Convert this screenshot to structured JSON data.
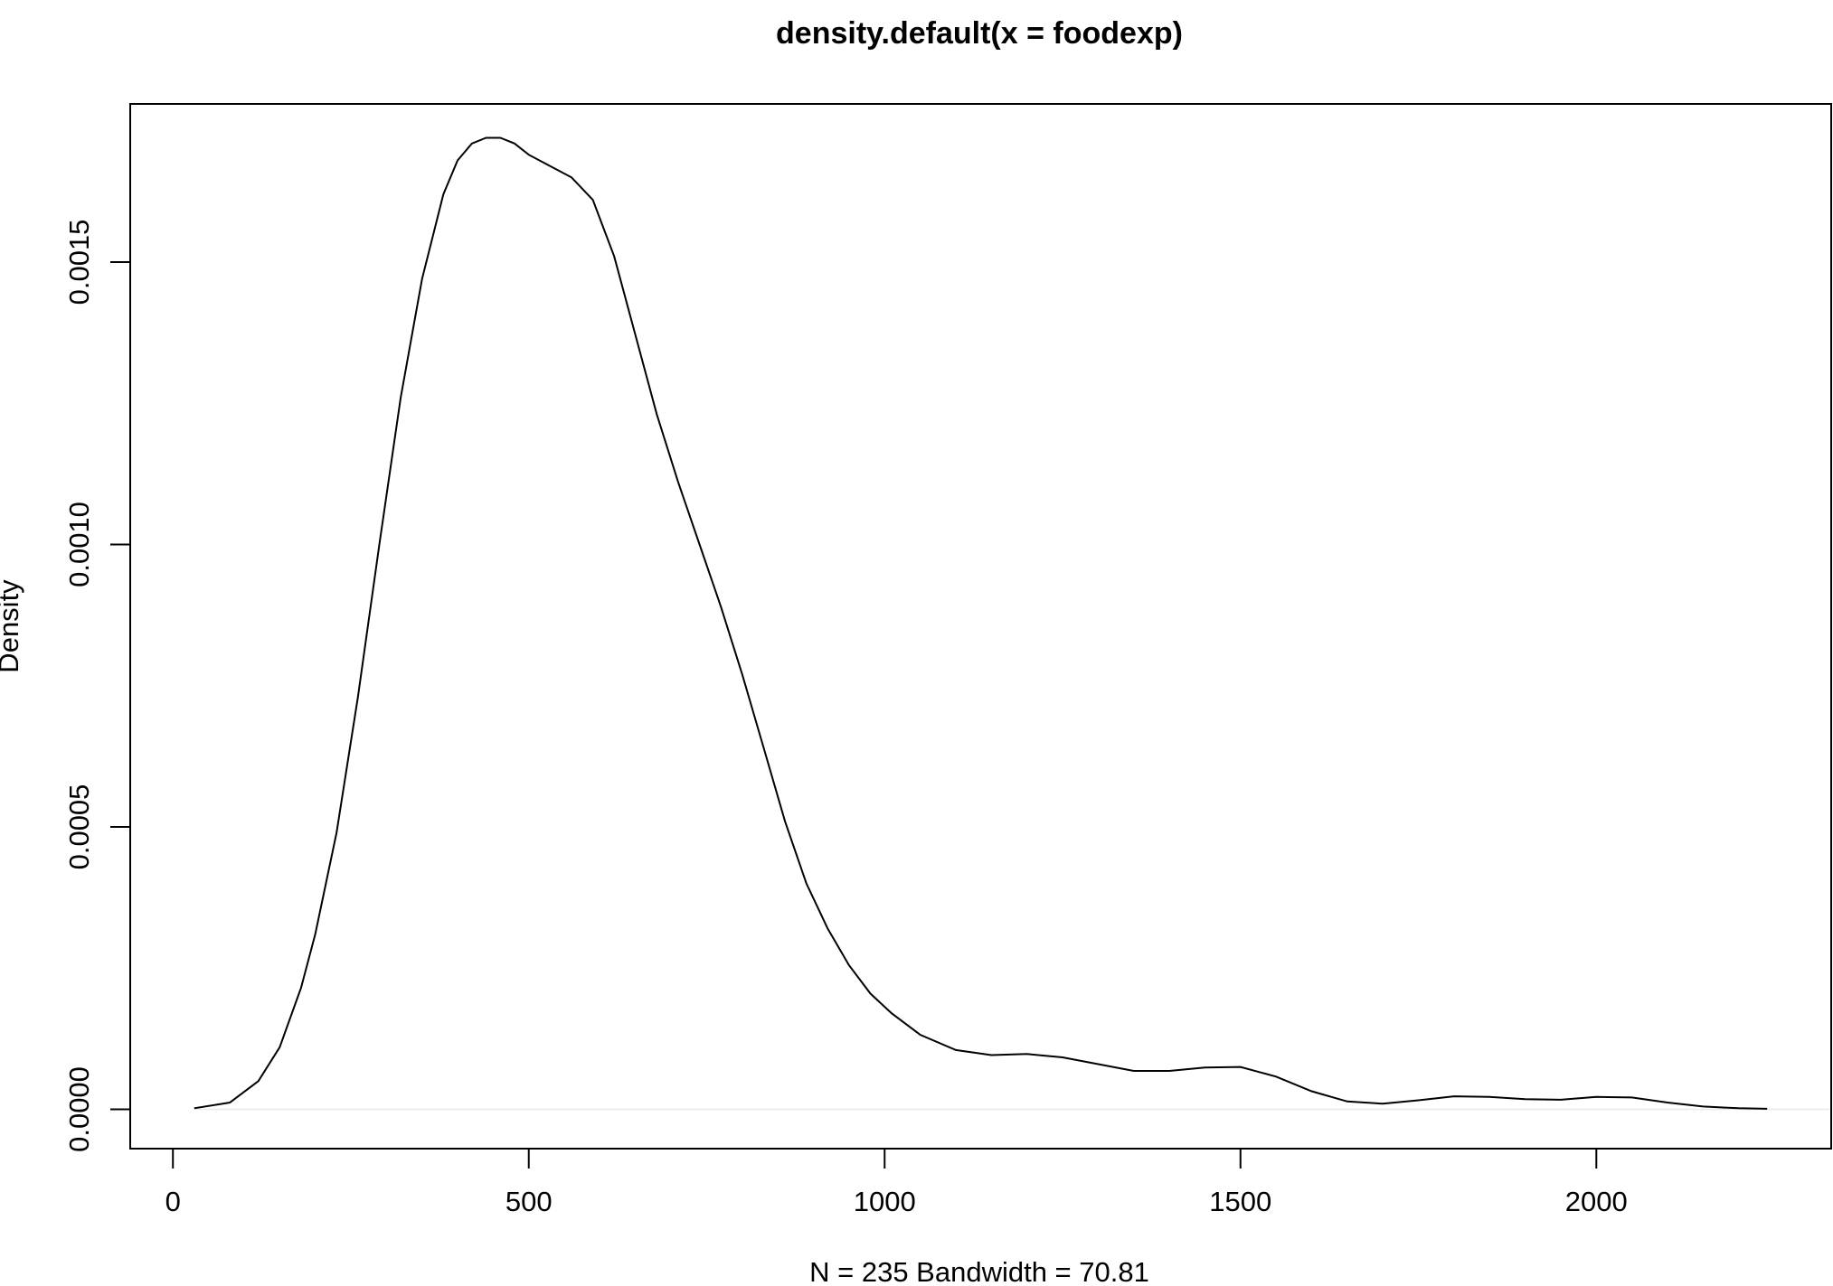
{
  "chart_data": {
    "type": "line",
    "title": "density.default(x = foodexp)",
    "xlabel": "N = 235   Bandwidth = 70.81",
    "ylabel": "Density",
    "xlim": [
      -60,
      2330
    ],
    "ylim": [
      -6.96e-05,
      0.00178
    ],
    "x_ticks": [
      0,
      500,
      1000,
      1500,
      2000
    ],
    "x_tick_labels": [
      "0",
      "500",
      "1000",
      "1500",
      "2000"
    ],
    "y_ticks": [
      0.0,
      0.0005,
      0.001,
      0.0015
    ],
    "y_tick_labels": [
      "0.0000",
      "0.0005",
      "0.0010",
      "0.0015"
    ],
    "grid": false,
    "zero_line": true,
    "line_color": "#000000",
    "series": [
      {
        "x": [
          30,
          80,
          120,
          150,
          180,
          200,
          230,
          260,
          290,
          320,
          350,
          380,
          400,
          420,
          440,
          460,
          480,
          500,
          530,
          560,
          590,
          620,
          650,
          680,
          710,
          740,
          770,
          800,
          830,
          860,
          890,
          920,
          950,
          980,
          1010,
          1050,
          1100,
          1150,
          1200,
          1250,
          1300,
          1350,
          1400,
          1450,
          1500,
          1550,
          1600,
          1650,
          1700,
          1750,
          1800,
          1850,
          1900,
          1950,
          2000,
          2050,
          2100,
          2150,
          2200,
          2240
        ],
        "y": [
          2e-06,
          1.2e-05,
          5e-05,
          0.00011,
          0.000215,
          0.00031,
          0.00049,
          0.00073,
          0.001,
          0.00126,
          0.00147,
          0.00162,
          0.00168,
          0.00171,
          0.00172,
          0.00172,
          0.00171,
          0.00169,
          0.00167,
          0.00165,
          0.00161,
          0.00151,
          0.00137,
          0.00123,
          0.00111,
          0.001,
          0.00089,
          0.00077,
          0.00064,
          0.00051,
          0.0004,
          0.00032,
          0.000255,
          0.000205,
          0.00017,
          0.000132,
          0.000105,
          9.6e-05,
          9.8e-05,
          9.2e-05,
          8e-05,
          6.8e-05,
          6.8e-05,
          7.4e-05,
          7.5e-05,
          5.8e-05,
          3.2e-05,
          1.4e-05,
          1e-05,
          1.6e-05,
          2.3e-05,
          2.2e-05,
          1.8e-05,
          1.7e-05,
          2.2e-05,
          2.1e-05,
          1.2e-05,
          5e-06,
          2e-06,
          1e-06
        ]
      }
    ]
  }
}
